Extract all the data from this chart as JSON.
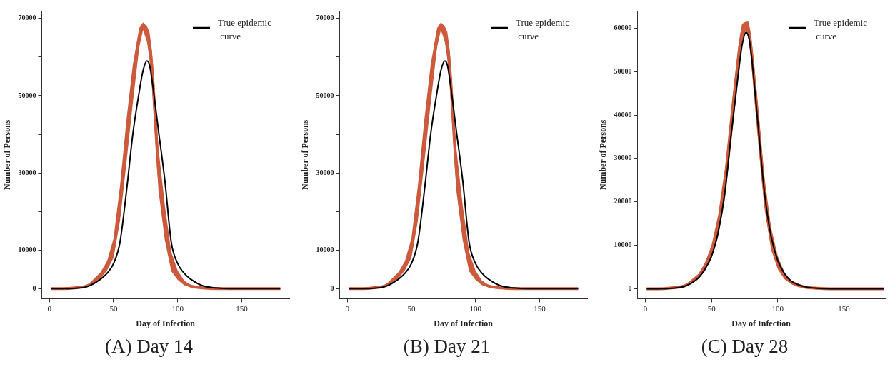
{
  "chart_data": [
    {
      "type": "line",
      "title": "(A) Day 14",
      "xlabel": "Day of Infection",
      "ylabel": "Number of Persons",
      "legend": "top right",
      "grid": false,
      "marker": "none",
      "x": [
        1,
        10,
        20,
        30,
        40,
        45,
        50,
        55,
        60,
        65,
        70,
        73,
        76,
        78,
        80,
        85,
        90,
        95,
        100,
        105,
        110,
        120,
        130,
        140,
        150,
        160,
        180
      ],
      "xlim": [
        -6,
        187
      ],
      "xticks": [
        0,
        50,
        100,
        150
      ],
      "ylim": [
        -2600,
        72000
      ],
      "yticks": [
        0,
        {
          "value": 10000,
          "label": "10000"
        },
        {
          "value": 20000,
          "label": null
        },
        {
          "value": 30000,
          "label": "30000"
        },
        {
          "value": 40000,
          "label": null
        },
        {
          "value": 50000,
          "label": "50000"
        },
        {
          "value": 60000,
          "label": null
        },
        {
          "value": 70000,
          "label": "70000"
        }
      ],
      "series": [
        {
          "color": "#cc5a3c",
          "values": [
            0,
            0,
            200,
            800,
            3500,
            6000,
            10500,
            22000,
            38000,
            53000,
            65000,
            68000,
            66000,
            63000,
            57000,
            31000,
            17000,
            7000,
            3500,
            1500,
            700,
            200,
            0,
            0,
            0,
            0,
            0
          ],
          "lower": [
            0,
            0,
            200,
            600,
            2700,
            4800,
            8000,
            17500,
            32500,
            48000,
            62500,
            67000,
            64000,
            59500,
            52500,
            25500,
            12500,
            4500,
            2300,
            900,
            400,
            0,
            0,
            0,
            0,
            0,
            0
          ],
          "upper": [
            0,
            0,
            300,
            1000,
            4300,
            7200,
            13000,
            26500,
            43500,
            58000,
            67500,
            69000,
            68000,
            66500,
            61500,
            36500,
            21500,
            9500,
            4700,
            2100,
            1000,
            300,
            0,
            0,
            0,
            0,
            0
          ]
        },
        {
          "name": "True epidemic curve",
          "color": "#000000",
          "values": [
            0,
            0,
            100,
            600,
            2500,
            4000,
            6500,
            12000,
            25000,
            40000,
            51000,
            56500,
            59000,
            58000,
            54000,
            41000,
            28000,
            12000,
            6500,
            4000,
            2500,
            700,
            200,
            0,
            0,
            0,
            0
          ]
        }
      ]
    },
    {
      "type": "line",
      "title": "(B) Day 21",
      "xlabel": "Day of Infection",
      "ylabel": "Number of Persons",
      "legend": "top right",
      "grid": false,
      "marker": "none",
      "x": [
        1,
        10,
        20,
        30,
        40,
        45,
        50,
        55,
        60,
        65,
        70,
        73,
        76,
        78,
        80,
        85,
        90,
        95,
        100,
        105,
        110,
        120,
        130,
        140,
        150,
        160,
        180
      ],
      "xlim": [
        -6,
        187
      ],
      "xticks": [
        0,
        50,
        100,
        150
      ],
      "ylim": [
        -2600,
        72000
      ],
      "yticks": [
        0,
        {
          "value": 10000,
          "label": "10000"
        },
        {
          "value": 20000,
          "label": null
        },
        {
          "value": 30000,
          "label": "30000"
        },
        {
          "value": 40000,
          "label": null
        },
        {
          "value": 50000,
          "label": "50000"
        },
        {
          "value": 60000,
          "label": null
        },
        {
          "value": 70000,
          "label": "70000"
        }
      ],
      "series": [
        {
          "color": "#cc5a3c",
          "values": [
            0,
            0,
            200,
            800,
            3500,
            6000,
            10500,
            22000,
            38000,
            53000,
            65000,
            68000,
            66000,
            63000,
            57000,
            31000,
            17000,
            7000,
            3500,
            1500,
            700,
            200,
            0,
            0,
            0,
            0,
            0
          ],
          "lower": [
            0,
            0,
            200,
            600,
            2700,
            4800,
            8000,
            17500,
            32500,
            48000,
            62500,
            67000,
            64000,
            59500,
            52500,
            25500,
            12500,
            4500,
            2300,
            900,
            400,
            0,
            0,
            0,
            0,
            0,
            0
          ],
          "upper": [
            0,
            0,
            300,
            1000,
            4300,
            7200,
            13000,
            26500,
            43500,
            58000,
            67500,
            69000,
            68000,
            66500,
            61500,
            36500,
            21500,
            9500,
            4700,
            2100,
            1000,
            300,
            0,
            0,
            0,
            0,
            0
          ]
        },
        {
          "name": "True epidemic curve",
          "color": "#000000",
          "values": [
            0,
            0,
            100,
            600,
            2500,
            4000,
            6500,
            12000,
            25000,
            40000,
            51000,
            56500,
            59000,
            58000,
            54000,
            41000,
            28000,
            12000,
            6500,
            4000,
            2500,
            700,
            200,
            0,
            0,
            0,
            0
          ]
        }
      ]
    },
    {
      "type": "line",
      "title": "(C) Day 28",
      "xlabel": "Day of Infection",
      "ylabel": "Number of Persons",
      "legend": "top right",
      "grid": false,
      "marker": "none",
      "x": [
        1,
        10,
        20,
        30,
        40,
        45,
        50,
        55,
        60,
        65,
        70,
        73,
        76,
        78,
        80,
        85,
        90,
        95,
        100,
        105,
        110,
        120,
        130,
        140,
        150,
        160,
        180
      ],
      "xlim": [
        -6,
        181
      ],
      "xticks": [
        0,
        50,
        100,
        150
      ],
      "ylim": [
        -2300,
        64000
      ],
      "yticks": [
        0,
        10000,
        20000,
        30000,
        40000,
        50000,
        60000
      ],
      "series": [
        {
          "color": "#cc5a3c",
          "values": [
            0,
            0,
            200,
            700,
            2800,
            5000,
            8500,
            14500,
            24000,
            38000,
            52000,
            59000,
            60500,
            59500,
            55000,
            38500,
            22000,
            11500,
            6000,
            3000,
            1500,
            400,
            100,
            0,
            0,
            0,
            0
          ],
          "lower": [
            0,
            0,
            100,
            500,
            2200,
            4000,
            7000,
            12000,
            20500,
            34000,
            48500,
            57000,
            59500,
            57500,
            52000,
            34500,
            18500,
            9000,
            4500,
            2200,
            1100,
            300,
            0,
            0,
            0,
            0,
            0
          ],
          "upper": [
            0,
            0,
            200,
            900,
            3400,
            6000,
            10000,
            17000,
            27500,
            42000,
            55500,
            61000,
            61500,
            61500,
            58000,
            42500,
            25500,
            14000,
            7500,
            3800,
            1900,
            600,
            100,
            0,
            0,
            0,
            0
          ]
        },
        {
          "name": "True epidemic curve",
          "color": "#000000",
          "values": [
            0,
            0,
            100,
            600,
            2500,
            4500,
            7500,
            13000,
            22000,
            36000,
            49000,
            56000,
            59000,
            58000,
            54000,
            38000,
            22000,
            12000,
            6500,
            3500,
            1800,
            500,
            100,
            0,
            0,
            0,
            0
          ]
        }
      ]
    }
  ]
}
